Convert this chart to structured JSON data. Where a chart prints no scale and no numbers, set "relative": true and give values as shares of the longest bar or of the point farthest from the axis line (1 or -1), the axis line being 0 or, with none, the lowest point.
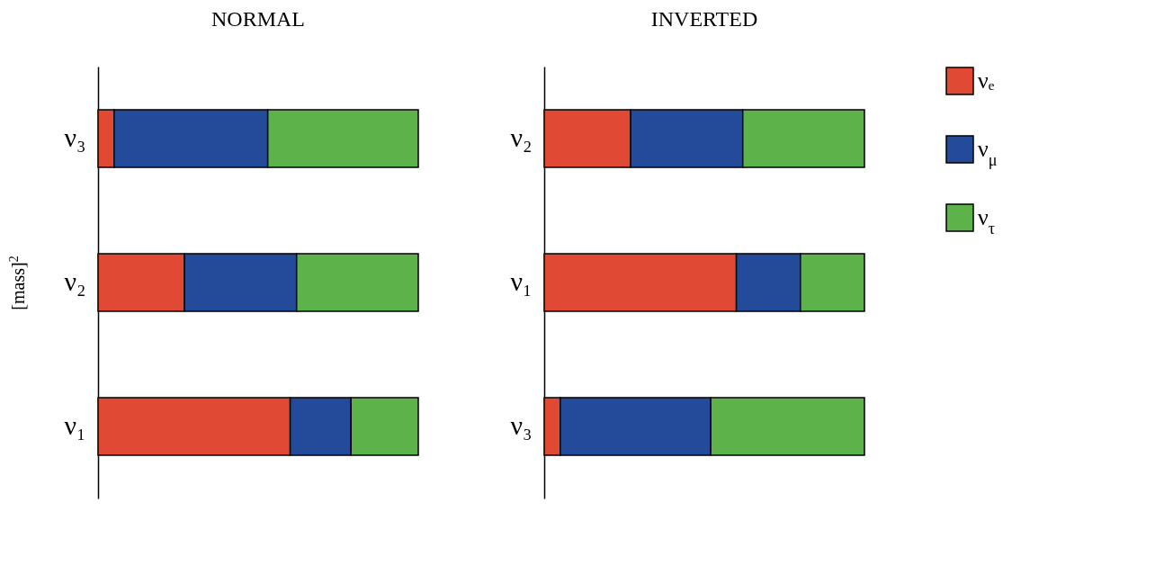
{
  "chart_data": [
    {
      "type": "bar",
      "orientation": "horizontal",
      "stacked": true,
      "relative": true,
      "title": "NORMAL",
      "ylabel": "[mass]$^{2}$",
      "categories": [
        "ν₃",
        "ν₂",
        "ν₁"
      ],
      "series": [
        {
          "color": "#e04a35",
          "values": [
            0.05,
            0.27,
            0.6
          ]
        },
        {
          "color": "#244a9a",
          "values": [
            0.48,
            0.35,
            0.19
          ]
        },
        {
          "color": "#5db34a",
          "values": [
            0.47,
            0.38,
            0.21
          ]
        }
      ]
    },
    {
      "type": "bar",
      "orientation": "horizontal",
      "stacked": true,
      "relative": true,
      "title": "INVERTED",
      "legend": "right",
      "categories": [
        "ν₂",
        "ν₁",
        "ν₃"
      ],
      "series": [
        {
          "name": "νₑ",
          "color": "#e04a35",
          "values": [
            0.27,
            0.6,
            0.05
          ]
        },
        {
          "name": "ν$_{μ}$",
          "color": "#244a9a",
          "values": [
            0.35,
            0.2,
            0.47
          ]
        },
        {
          "name": "ν$_{τ}$",
          "color": "#5db34a",
          "values": [
            0.38,
            0.2,
            0.48
          ]
        }
      ]
    }
  ]
}
